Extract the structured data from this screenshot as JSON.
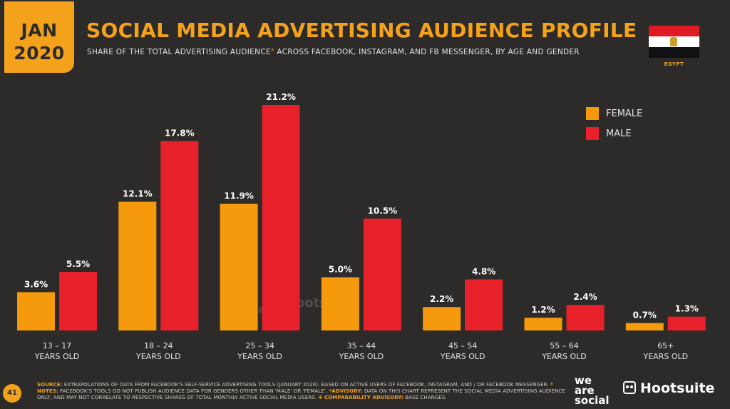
{
  "badge": {
    "month": "JAN",
    "year": "2020"
  },
  "header": {
    "title": "SOCIAL MEDIA ADVERTISING AUDIENCE PROFILE",
    "subtitle_before": "SHARE OF THE TOTAL ADVERTISING AUDIENCE",
    "subtitle_asterisk": "*",
    "subtitle_after": " ACROSS FACEBOOK, INSTAGRAM, AND FB MESSENGER, BY AGE AND GENDER"
  },
  "country": "EGYPT",
  "colors": {
    "female": "#f59a0c",
    "male": "#e8202a",
    "accent": "#f4a21c",
    "background": "#2d2b29"
  },
  "chart_data": {
    "type": "bar",
    "title": "SOCIAL MEDIA ADVERTISING AUDIENCE PROFILE",
    "categories": [
      {
        "range": "13 – 17",
        "sub": "YEARS OLD"
      },
      {
        "range": "18 – 24",
        "sub": "YEARS OLD"
      },
      {
        "range": "25 – 34",
        "sub": "YEARS OLD"
      },
      {
        "range": "35 – 44",
        "sub": "YEARS OLD"
      },
      {
        "range": "45 – 54",
        "sub": "YEARS OLD"
      },
      {
        "range": "55 – 64",
        "sub": "YEARS OLD"
      },
      {
        "range": "65+",
        "sub": "YEARS OLD"
      }
    ],
    "series": [
      {
        "name": "FEMALE",
        "values": [
          3.6,
          12.1,
          11.9,
          5.0,
          2.2,
          1.2,
          0.7
        ],
        "labels": [
          "3.6%",
          "12.1%",
          "11.9%",
          "5.0%",
          "2.2%",
          "1.2%",
          "0.7%"
        ]
      },
      {
        "name": "MALE",
        "values": [
          5.5,
          17.8,
          21.2,
          10.5,
          4.8,
          2.4,
          1.3
        ],
        "labels": [
          "5.5%",
          "17.8%",
          "21.2%",
          "10.5%",
          "4.8%",
          "2.4%",
          "1.3%"
        ]
      }
    ],
    "ylim": [
      0,
      21.2
    ],
    "legend": "top-right",
    "grid": false
  },
  "watermark": {
    "we": "we",
    "are": "are",
    "social": "social",
    "hootsuite": "Hootsuite"
  },
  "footer": {
    "page": "41",
    "source_key": "SOURCE:",
    "source_text": " EXTRAPOLATIONS OF DATA FROM FACEBOOK'S SELF-SERVICE ADVERTISING TOOLS (JANUARY 2020). BASED ON ACTIVE USERS OF FACEBOOK, INSTAGRAM, AND / OR FACEBOOK MESSENGER. ",
    "notes_key": "* NOTES:",
    "notes_text": " FACEBOOK'S TOOLS DO NOT PUBLISH AUDIENCE DATA FOR GENDERS OTHER THAN 'MALE' OR 'FEMALE'. ",
    "advisory_key": "*ADVISORY:",
    "advisory_text": " DATA ON THIS CHART REPRESENT THE SOCIAL MEDIA ADVERTISING AUDIENCE ONLY, AND MAY NOT CORRELATE TO RESPECTIVE SHARES OF TOTAL MONTHLY ACTIVE SOCIAL MEDIA USERS. ",
    "comparability_key": "✥ COMPARABILITY ADVISORY:",
    "comparability_text": " BASE CHANGES.",
    "brand_we": "we",
    "brand_are": "are",
    "brand_social": "social",
    "brand_hootsuite": "Hootsuite"
  }
}
